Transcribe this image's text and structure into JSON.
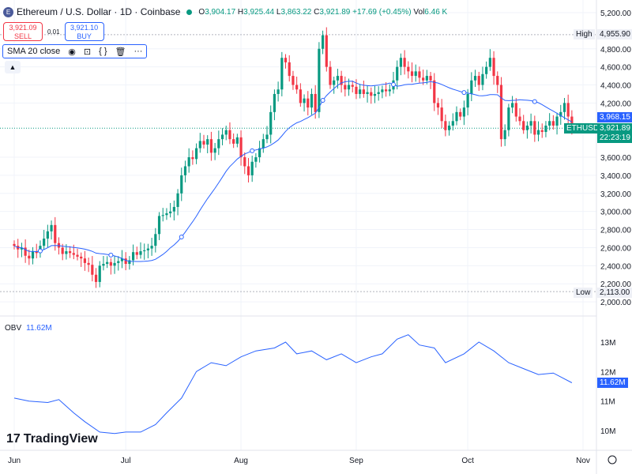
{
  "header": {
    "logo_letter": "E",
    "title": "Ethereum / U.S. Dollar · 1D · Coinbase",
    "open_label": "O",
    "open": "3,904.17",
    "high_label": "H",
    "high": "3,925.44",
    "low_label": "L",
    "low": "3,863.22",
    "close_label": "C",
    "close": "3,921.89",
    "change": "+17.69 (+0.45%)",
    "vol_label": "Vol",
    "vol": "6.46 K"
  },
  "trade": {
    "sell_price": "3,921.09",
    "sell_label": "SELL",
    "spread": "0.01",
    "buy_price": "3,921.10",
    "buy_label": "BUY"
  },
  "indicator": {
    "label": "SMA 20 close",
    "icons": [
      "eye-icon",
      "settings-icon",
      "source-code-icon",
      "trash-icon",
      "more-icon"
    ]
  },
  "obv": {
    "label": "OBV",
    "value": "11.62M"
  },
  "branding": "TradingView",
  "price_tags": {
    "high_label": "High",
    "high_value": "4,955.90",
    "low_label": "Low",
    "low_value": "2,113.00",
    "sma_value": "3,968.15",
    "symbol": "ETHUSD",
    "last": "3,921.89",
    "countdown": "22:23:19",
    "obv_last": "11.62M"
  },
  "colors": {
    "up": "#089981",
    "down": "#f23645",
    "sma": "#2962ff",
    "obv": "#2962ff"
  },
  "chart_data": {
    "type": "candlestick",
    "start_date": "2025-06-01",
    "closes": [
      2620,
      2580,
      2600,
      2510,
      2480,
      2560,
      2540,
      2620,
      2700,
      2780,
      2850,
      2650,
      2600,
      2530,
      2560,
      2540,
      2520,
      2500,
      2480,
      2430,
      2410,
      2300,
      2220,
      2400,
      2420,
      2440,
      2400,
      2430,
      2450,
      2480,
      2420,
      2460,
      2550,
      2520,
      2560,
      2570,
      2590,
      2620,
      2750,
      2950,
      2960,
      2980,
      3000,
      3050,
      3200,
      3400,
      3500,
      3600,
      3580,
      3700,
      3780,
      3740,
      3800,
      3650,
      3700,
      3800,
      3850,
      3900,
      3800,
      3750,
      3820,
      3600,
      3500,
      3400,
      3550,
      3600,
      3700,
      3800,
      3850,
      4100,
      4300,
      4350,
      4700,
      4650,
      4500,
      4400,
      4350,
      4200,
      4250,
      4150,
      4300,
      4100,
      4800,
      4950,
      4600,
      4400,
      4450,
      4500,
      4400,
      4350,
      4400,
      4380,
      4300,
      4350,
      4300,
      4320,
      4280,
      4300,
      4320,
      4350,
      4330,
      4350,
      4450,
      4600,
      4700,
      4600,
      4550,
      4500,
      4550,
      4480,
      4450,
      4500,
      4450,
      4200,
      4150,
      4000,
      3900,
      3950,
      4000,
      4100,
      4050,
      4150,
      4300,
      4450,
      4500,
      4400,
      4520,
      4600,
      4700,
      4500,
      4400,
      3800,
      3900,
      4150,
      4200,
      4050,
      4000,
      3900,
      3950,
      4000,
      3850,
      3900,
      3880,
      3950,
      4000,
      3950,
      4050,
      4100,
      4200,
      4050,
      3922
    ],
    "price_ticks": [
      "5,200.00",
      "4,800.00",
      "4,600.00",
      "4,400.00",
      "4,200.00",
      "3,600.00",
      "3,400.00",
      "3,200.00",
      "3,000.00",
      "2,800.00",
      "2,600.00",
      "2,400.00",
      "2,200.00",
      "2,000.00"
    ],
    "price_tick_values": [
      5200,
      4800,
      4600,
      4400,
      4200,
      3600,
      3400,
      3200,
      3000,
      2800,
      2600,
      2400,
      2200,
      2000
    ],
    "obv_ticks": [
      "13M",
      "12M",
      "11M",
      "10M"
    ],
    "obv_tick_values": [
      13,
      12,
      11,
      10
    ],
    "obv_series": [
      [
        0,
        11.1
      ],
      [
        4,
        11.0
      ],
      [
        9,
        10.95
      ],
      [
        12,
        11.05
      ],
      [
        16,
        10.6
      ],
      [
        19,
        10.3
      ],
      [
        23,
        9.95
      ],
      [
        27,
        9.9
      ],
      [
        30,
        9.95
      ],
      [
        34,
        9.95
      ],
      [
        38,
        10.2
      ],
      [
        41,
        10.6
      ],
      [
        45,
        11.1
      ],
      [
        49,
        12.0
      ],
      [
        53,
        12.3
      ],
      [
        57,
        12.2
      ],
      [
        61,
        12.5
      ],
      [
        65,
        12.7
      ],
      [
        70,
        12.8
      ],
      [
        73,
        13.0
      ],
      [
        76,
        12.6
      ],
      [
        80,
        12.7
      ],
      [
        84,
        12.4
      ],
      [
        88,
        12.6
      ],
      [
        92,
        12.3
      ],
      [
        96,
        12.5
      ],
      [
        99,
        12.6
      ],
      [
        103,
        13.1
      ],
      [
        106,
        13.25
      ],
      [
        109,
        12.9
      ],
      [
        113,
        12.8
      ],
      [
        116,
        12.3
      ],
      [
        121,
        12.6
      ],
      [
        125,
        13.0
      ],
      [
        129,
        12.7
      ],
      [
        133,
        12.3
      ],
      [
        137,
        12.1
      ],
      [
        141,
        11.9
      ],
      [
        145,
        11.95
      ],
      [
        150,
        11.62
      ]
    ],
    "x_ticks": [
      {
        "label": "Jun",
        "day": 0
      },
      {
        "label": "Jul",
        "day": 30
      },
      {
        "label": "Aug",
        "day": 61
      },
      {
        "label": "Sep",
        "day": 92
      },
      {
        "label": "Oct",
        "day": 122
      },
      {
        "label": "Nov",
        "day": 153
      }
    ],
    "sma_period": 20
  }
}
